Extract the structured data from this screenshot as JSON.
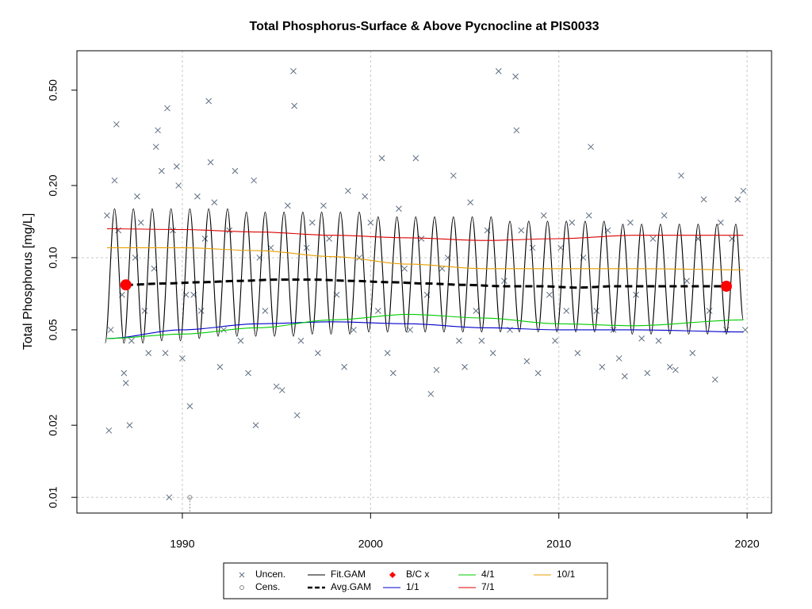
{
  "chart_data": {
    "type": "scatter",
    "title": "Total Phosphorus-Surface & Above Pycnocline at PIS0033",
    "y_label": "Total Phosphorus [mg/L]",
    "log_y": true,
    "xlim": [
      1984.4,
      2021.3
    ],
    "xticks": [
      1990,
      2000,
      2010,
      2020
    ],
    "ylim": [
      0.0086,
      0.73
    ],
    "yticks": [
      0.01,
      0.02,
      0.05,
      {
        "value": 0.1,
        "label": "0.10"
      },
      {
        "value": 0.2,
        "label": "0.20"
      },
      {
        "value": 0.5,
        "label": "0.50"
      }
    ],
    "ygrid": [
      0.01,
      0.1
    ],
    "grid": true,
    "legend": "bottom",
    "series": [
      {
        "name": "Uncen.",
        "type": "scatter",
        "color": "#5f6f82",
        "x": [
          1986.0,
          1986.1,
          1986.2,
          1986.4,
          1986.5,
          1986.6,
          1986.8,
          1986.9,
          1987.0,
          1987.2,
          1987.3,
          1987.5,
          1987.6,
          1987.8,
          1988.0,
          1988.2,
          1988.5,
          1988.6,
          1988.7,
          1988.9,
          1989.1,
          1989.2,
          1989.3,
          1989.5,
          1989.7,
          1989.8,
          1990.0,
          1990.2,
          1990.4,
          1990.6,
          1990.8,
          1991.0,
          1991.2,
          1991.4,
          1991.5,
          1991.7,
          1992.0,
          1992.2,
          1992.5,
          1992.8,
          1993.1,
          1993.5,
          1993.8,
          1993.9,
          1994.1,
          1994.4,
          1994.7,
          1995.0,
          1995.3,
          1995.6,
          1995.9,
          1995.95,
          1996.1,
          1996.3,
          1996.6,
          1996.9,
          1997.2,
          1997.5,
          1997.8,
          1998.2,
          1998.6,
          1998.8,
          1999.1,
          1999.4,
          1999.7,
          2000.0,
          2000.4,
          2000.6,
          2000.9,
          2001.2,
          2001.5,
          2001.8,
          2002.1,
          2002.4,
          2002.7,
          2003.0,
          2003.2,
          2003.5,
          2003.8,
          2004.1,
          2004.4,
          2004.7,
          2005.0,
          2005.3,
          2005.6,
          2005.9,
          2006.2,
          2006.5,
          2006.8,
          2007.1,
          2007.4,
          2007.7,
          2007.75,
          2008.0,
          2008.3,
          2008.6,
          2008.9,
          2009.2,
          2009.5,
          2009.8,
          2010.1,
          2010.4,
          2010.7,
          2011.0,
          2011.3,
          2011.6,
          2011.7,
          2012.0,
          2012.3,
          2012.6,
          2012.9,
          2013.2,
          2013.5,
          2013.8,
          2014.1,
          2014.4,
          2014.7,
          2015.0,
          2015.3,
          2015.6,
          2015.9,
          2016.2,
          2016.5,
          2016.8,
          2017.1,
          2017.4,
          2017.7,
          2018.0,
          2018.3,
          2018.6,
          2018.9,
          2019.2,
          2019.5,
          2019.8,
          2019.9
        ],
        "values": [
          0.15,
          0.019,
          0.05,
          0.21,
          0.36,
          0.13,
          0.07,
          0.033,
          0.03,
          0.02,
          0.045,
          0.1,
          0.18,
          0.14,
          0.06,
          0.04,
          0.09,
          0.29,
          0.34,
          0.23,
          0.04,
          0.42,
          0.01,
          0.13,
          0.24,
          0.2,
          0.038,
          0.07,
          0.024,
          0.07,
          0.18,
          0.06,
          0.12,
          0.45,
          0.25,
          0.17,
          0.035,
          0.05,
          0.13,
          0.23,
          0.045,
          0.033,
          0.21,
          0.02,
          0.1,
          0.06,
          0.11,
          0.029,
          0.028,
          0.165,
          0.6,
          0.43,
          0.022,
          0.045,
          0.11,
          0.14,
          0.04,
          0.165,
          0.12,
          0.07,
          0.035,
          0.19,
          0.05,
          0.1,
          0.18,
          0.14,
          0.06,
          0.26,
          0.04,
          0.033,
          0.16,
          0.09,
          0.05,
          0.26,
          0.12,
          0.07,
          0.027,
          0.034,
          0.09,
          0.1,
          0.22,
          0.045,
          0.035,
          0.17,
          0.06,
          0.045,
          0.13,
          0.04,
          0.6,
          0.08,
          0.05,
          0.57,
          0.34,
          0.13,
          0.037,
          0.11,
          0.033,
          0.15,
          0.07,
          0.045,
          0.11,
          0.06,
          0.14,
          0.04,
          0.1,
          0.15,
          0.29,
          0.06,
          0.035,
          0.13,
          0.05,
          0.038,
          0.032,
          0.14,
          0.07,
          0.046,
          0.033,
          0.12,
          0.045,
          0.15,
          0.035,
          0.034,
          0.22,
          0.08,
          0.04,
          0.12,
          0.175,
          0.06,
          0.031,
          0.14,
          0.05,
          0.12,
          0.175,
          0.19,
          0.05
        ]
      },
      {
        "name": "Cens.",
        "type": "censored",
        "color": "#8a8a8a",
        "x": [
          1990.4
        ],
        "values": [
          0.01
        ]
      },
      {
        "name": "Fit.GAM",
        "type": "line",
        "color": "#000000",
        "x": [
          1985.9,
          1986.4,
          1986.9,
          1987.4,
          1987.9,
          1988.4,
          1988.9,
          1989.4,
          1989.9,
          1990.4,
          1990.9,
          1991.4,
          1991.9,
          1992.4,
          1992.9,
          1993.4,
          1993.9,
          1994.4,
          1994.9,
          1995.4,
          1995.9,
          1996.4,
          1996.9,
          1997.4,
          1997.9,
          1998.4,
          1998.9,
          1999.4,
          1999.9,
          2000.4,
          2000.9,
          2001.4,
          2001.9,
          2002.4,
          2002.9,
          2003.4,
          2003.9,
          2004.4,
          2004.9,
          2005.4,
          2005.9,
          2006.4,
          2006.9,
          2007.4,
          2007.9,
          2008.4,
          2008.9,
          2009.4,
          2009.9,
          2010.4,
          2010.9,
          2011.4,
          2011.9,
          2012.4,
          2012.9,
          2013.4,
          2013.9,
          2014.4,
          2014.9,
          2015.4,
          2015.9,
          2016.4,
          2016.9,
          2017.4,
          2017.9,
          2018.4,
          2018.9,
          2019.4,
          2019.8
        ],
        "values": [
          0.044,
          0.16,
          0.044,
          0.16,
          0.044,
          0.16,
          0.045,
          0.16,
          0.045,
          0.16,
          0.046,
          0.16,
          0.047,
          0.16,
          0.047,
          0.155,
          0.047,
          0.155,
          0.047,
          0.155,
          0.047,
          0.155,
          0.048,
          0.155,
          0.048,
          0.155,
          0.048,
          0.155,
          0.049,
          0.148,
          0.049,
          0.148,
          0.049,
          0.148,
          0.049,
          0.148,
          0.049,
          0.148,
          0.049,
          0.148,
          0.049,
          0.148,
          0.049,
          0.142,
          0.049,
          0.142,
          0.049,
          0.142,
          0.049,
          0.142,
          0.049,
          0.142,
          0.049,
          0.142,
          0.049,
          0.138,
          0.048,
          0.138,
          0.048,
          0.138,
          0.048,
          0.138,
          0.048,
          0.138,
          0.048,
          0.138,
          0.048,
          0.138,
          0.055
        ]
      },
      {
        "name": "Avg.GAM",
        "type": "line",
        "dash": true,
        "color": "#000000",
        "x": [
          1987,
          1989,
          1991,
          1993,
          1995,
          1997,
          1999,
          2001,
          2003,
          2005,
          2007,
          2009,
          2011,
          2013,
          2015,
          2017,
          2019
        ],
        "values": [
          0.077,
          0.078,
          0.079,
          0.08,
          0.081,
          0.081,
          0.08,
          0.079,
          0.078,
          0.077,
          0.076,
          0.076,
          0.075,
          0.076,
          0.076,
          0.076,
          0.076
        ]
      },
      {
        "name": "B/C x",
        "type": "points",
        "color": "#ff0000",
        "x": [
          1987.0,
          2018.9
        ],
        "values": [
          0.077,
          0.076
        ]
      },
      {
        "name": "1/1",
        "type": "line",
        "color": "#0000cc",
        "x": [
          1986,
          1990,
          1994,
          1998,
          2002,
          2006,
          2010,
          2014,
          2019.8
        ],
        "values": [
          0.046,
          0.05,
          0.053,
          0.054,
          0.053,
          0.051,
          0.05,
          0.05,
          0.049
        ]
      },
      {
        "name": "4/1",
        "type": "line",
        "color": "#00cc00",
        "x": [
          1986,
          1990,
          1994,
          1998,
          2002,
          2006,
          2010,
          2014,
          2019.8
        ],
        "values": [
          0.046,
          0.048,
          0.051,
          0.055,
          0.058,
          0.056,
          0.053,
          0.052,
          0.055
        ]
      },
      {
        "name": "7/1",
        "type": "line",
        "color": "#dd0000",
        "x": [
          1986,
          1990,
          1994,
          1998,
          2002,
          2006,
          2010,
          2014,
          2019.8
        ],
        "values": [
          0.132,
          0.131,
          0.128,
          0.124,
          0.121,
          0.118,
          0.12,
          0.124,
          0.124
        ]
      },
      {
        "name": "10/1",
        "type": "line",
        "color": "#e69f00",
        "x": [
          1986,
          1990,
          1994,
          1998,
          2002,
          2006,
          2010,
          2014,
          2019.8
        ],
        "values": [
          0.11,
          0.11,
          0.107,
          0.101,
          0.094,
          0.09,
          0.09,
          0.09,
          0.089
        ]
      }
    ]
  }
}
